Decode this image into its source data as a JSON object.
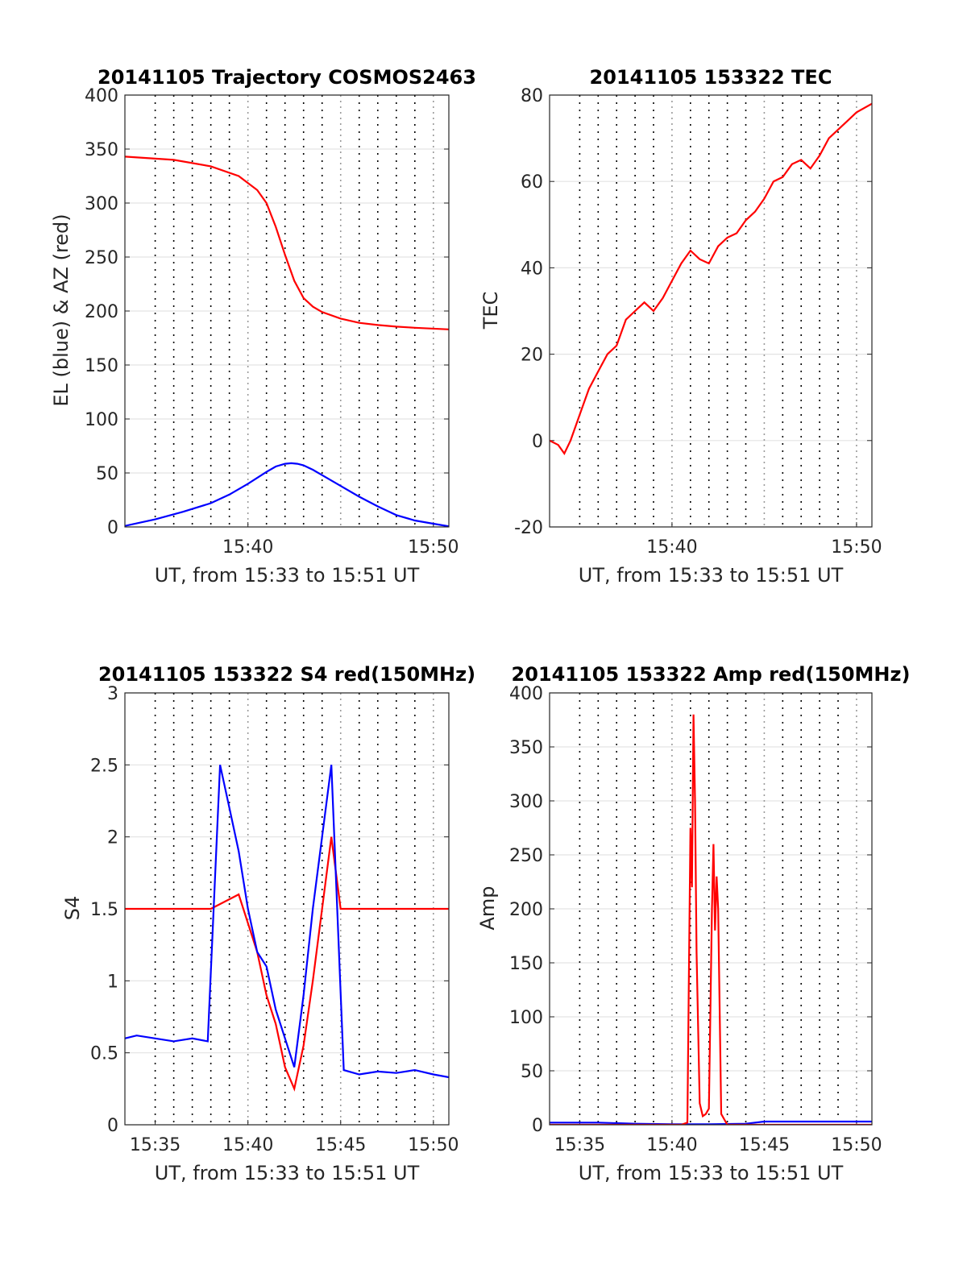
{
  "chart_data": [
    {
      "id": "traj",
      "type": "line",
      "title": "20141105 Trajectory COSMOS2463",
      "xlabel": "UT, from 15:33 to 15:51 UT",
      "ylabel": "EL (blue) & AZ (red)",
      "xlim": [
        "15:33:22",
        "15:50:50"
      ],
      "ylim": [
        0,
        400
      ],
      "yticks": [
        "0",
        "50",
        "100",
        "150",
        "200",
        "250",
        "300",
        "350",
        "400"
      ],
      "xticks": [
        "15:40",
        "15:50"
      ],
      "grid": true,
      "series": [
        {
          "color": "#ff0000",
          "x": [
            "15:33:22",
            "15:36:00",
            "15:38:00",
            "15:39:30",
            "15:40:30",
            "15:41:00",
            "15:41:30",
            "15:42:00",
            "15:42:30",
            "15:43:00",
            "15:43:30",
            "15:44:00",
            "15:45:00",
            "15:46:00",
            "15:47:00",
            "15:48:00",
            "15:49:00",
            "15:50:50"
          ],
          "y": [
            343,
            340,
            334,
            325,
            312,
            300,
            278,
            252,
            228,
            212,
            204,
            199,
            193,
            189,
            187,
            185.5,
            184.5,
            183
          ]
        },
        {
          "color": "#0000ff",
          "x": [
            "15:33:22",
            "15:35:00",
            "15:36:30",
            "15:38:00",
            "15:39:00",
            "15:40:00",
            "15:41:00",
            "15:41:30",
            "15:42:00",
            "15:42:20",
            "15:42:40",
            "15:43:00",
            "15:43:30",
            "15:44:00",
            "15:45:00",
            "15:46:00",
            "15:47:00",
            "15:48:00",
            "15:49:00",
            "15:50:00",
            "15:50:50"
          ],
          "y": [
            1,
            7,
            14,
            22,
            30,
            40,
            51,
            56,
            58.5,
            59,
            58.5,
            57,
            53,
            48,
            38,
            28,
            19,
            11,
            6,
            3,
            0.5
          ]
        }
      ]
    },
    {
      "id": "tec",
      "type": "line",
      "title": "20141105 153322 TEC",
      "xlabel": "UT, from 15:33 to 15:51 UT",
      "ylabel": "TEC",
      "xlim": [
        "15:33:22",
        "15:50:50"
      ],
      "ylim": [
        -20,
        80
      ],
      "yticks": [
        "-20",
        "0",
        "20",
        "40",
        "60",
        "80"
      ],
      "xticks": [
        "15:40",
        "15:50"
      ],
      "grid": true,
      "series": [
        {
          "color": "#ff0000",
          "x": [
            "15:33:22",
            "15:33:50",
            "15:34:10",
            "15:34:30",
            "15:35:00",
            "15:35:30",
            "15:36:00",
            "15:36:30",
            "15:37:00",
            "15:37:30",
            "15:38:00",
            "15:38:30",
            "15:39:00",
            "15:39:30",
            "15:40:00",
            "15:40:30",
            "15:41:00",
            "15:41:30",
            "15:42:00",
            "15:42:30",
            "15:43:00",
            "15:43:30",
            "15:44:00",
            "15:44:30",
            "15:45:00",
            "15:45:30",
            "15:46:00",
            "15:46:30",
            "15:47:00",
            "15:47:30",
            "15:48:00",
            "15:48:30",
            "15:49:00",
            "15:49:30",
            "15:50:00",
            "15:50:50"
          ],
          "y": [
            0,
            -1,
            -3,
            0,
            6,
            12,
            16,
            20,
            22,
            28,
            30,
            32,
            30,
            33,
            37,
            41,
            44,
            42,
            41,
            45,
            47,
            48,
            51,
            53,
            56,
            60,
            61,
            64,
            65,
            63,
            66,
            70,
            72,
            74,
            76,
            78
          ]
        }
      ]
    },
    {
      "id": "s4",
      "type": "line",
      "title": "20141105 153322 S4 red(150MHz)",
      "xlabel": "UT, from 15:33 to 15:51 UT",
      "ylabel": "S4",
      "xlim": [
        "15:33:22",
        "15:50:50"
      ],
      "ylim": [
        0,
        3
      ],
      "yticks": [
        "0",
        "0.5",
        "1",
        "1.5",
        "2",
        "2.5",
        "3"
      ],
      "xticks": [
        "15:35",
        "15:40",
        "15:45",
        "15:50"
      ],
      "grid": true,
      "series": [
        {
          "color": "#ff0000",
          "x": [
            "15:33:22",
            "15:36:00",
            "15:38:00",
            "15:39:30",
            "15:40:30",
            "15:41:00",
            "15:41:30",
            "15:42:00",
            "15:42:30",
            "15:43:00",
            "15:43:30",
            "15:44:00",
            "15:44:30",
            "15:45:00",
            "15:46:00",
            "15:48:00",
            "15:50:50"
          ],
          "y": [
            1.5,
            1.5,
            1.5,
            1.6,
            1.2,
            0.9,
            0.7,
            0.4,
            0.25,
            0.55,
            1.0,
            1.5,
            2.0,
            1.5,
            1.5,
            1.5,
            1.5
          ]
        },
        {
          "color": "#0000ff",
          "x": [
            "15:33:22",
            "15:34:00",
            "15:35:00",
            "15:36:00",
            "15:37:00",
            "15:37:50",
            "15:38:30",
            "15:39:00",
            "15:39:30",
            "15:40:00",
            "15:40:30",
            "15:41:00",
            "15:41:30",
            "15:42:00",
            "15:42:30",
            "15:43:00",
            "15:43:30",
            "15:44:00",
            "15:44:30",
            "15:45:10",
            "15:46:00",
            "15:47:00",
            "15:48:00",
            "15:49:00",
            "15:50:00",
            "15:50:50"
          ],
          "y": [
            0.6,
            0.62,
            0.6,
            0.58,
            0.6,
            0.58,
            2.5,
            2.2,
            1.9,
            1.5,
            1.2,
            1.1,
            0.8,
            0.6,
            0.4,
            0.9,
            1.5,
            2.0,
            2.5,
            0.38,
            0.35,
            0.37,
            0.36,
            0.38,
            0.35,
            0.33
          ]
        }
      ]
    },
    {
      "id": "amp",
      "type": "line",
      "title": "20141105 153322 Amp red(150MHz)",
      "xlabel": "UT, from 15:33 to 15:51 UT",
      "ylabel": "Amp",
      "xlim": [
        "15:33:22",
        "15:50:50"
      ],
      "ylim": [
        0,
        400
      ],
      "yticks": [
        "0",
        "50",
        "100",
        "150",
        "200",
        "250",
        "300",
        "350",
        "400"
      ],
      "xticks": [
        "15:35",
        "15:40",
        "15:45",
        "15:50"
      ],
      "grid": true,
      "series": [
        {
          "color": "#0000ff",
          "x": [
            "15:33:22",
            "15:36:00",
            "15:38:00",
            "15:40:00",
            "15:42:00",
            "15:44:00",
            "15:45:00",
            "15:47:00",
            "15:49:00",
            "15:50:50"
          ],
          "y": [
            2,
            2,
            1,
            0.5,
            0.5,
            1,
            3,
            3,
            3,
            3
          ]
        },
        {
          "color": "#ff0000",
          "x": [
            "15:33:22",
            "15:40:30",
            "15:40:50",
            "15:41:00",
            "15:41:05",
            "15:41:10",
            "15:41:15",
            "15:41:20",
            "15:41:30",
            "15:41:40",
            "15:41:50",
            "15:42:00",
            "15:42:10",
            "15:42:15",
            "15:42:20",
            "15:42:25",
            "15:42:30",
            "15:42:40",
            "15:43:00",
            "15:50:50"
          ],
          "y": [
            0,
            0,
            2,
            275,
            220,
            380,
            300,
            160,
            20,
            8,
            10,
            15,
            200,
            260,
            180,
            230,
            200,
            10,
            0,
            0
          ]
        }
      ]
    }
  ]
}
